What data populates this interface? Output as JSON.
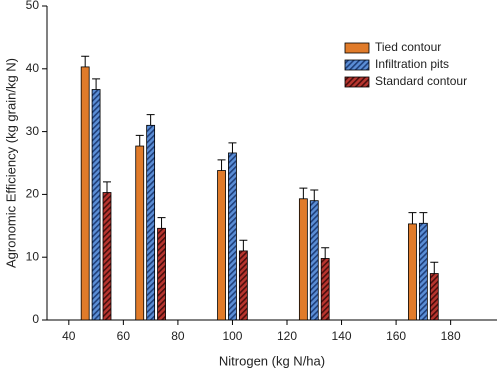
{
  "chart_data": {
    "type": "bar",
    "xlabel": "Nitrogen (kg N/ha)",
    "ylabel": "Agronomic Efficiency (kg grain/kg N)",
    "xlim": [
      32,
      197
    ],
    "xticks": [
      40,
      60,
      80,
      100,
      120,
      140,
      160,
      180
    ],
    "ylim": [
      0,
      50
    ],
    "yticks": [
      0,
      10,
      20,
      30,
      40,
      50
    ],
    "legend": "upper right",
    "series": [
      {
        "name": "Tied contour",
        "color": "#e07b2a",
        "hatch": false,
        "x": [
          46,
          66,
          96,
          126,
          166
        ],
        "values": [
          40.3,
          27.7,
          23.8,
          19.3,
          15.3
        ],
        "errors": [
          1.7,
          1.7,
          1.7,
          1.7,
          1.8
        ]
      },
      {
        "name": "Infiltration pits",
        "color": "#5b8ed6",
        "hatch": true,
        "hatch_color": "#1f3f7a",
        "x": [
          50,
          70,
          100,
          130,
          170
        ],
        "values": [
          36.7,
          31.0,
          26.6,
          19.0,
          15.4
        ],
        "errors": [
          1.7,
          1.7,
          1.6,
          1.7,
          1.7
        ]
      },
      {
        "name": "Standard contour",
        "color": "#b8352f",
        "hatch": true,
        "hatch_color": "#4a0f0d",
        "x": [
          54,
          74,
          104,
          134,
          174
        ],
        "values": [
          20.3,
          14.6,
          11.0,
          9.8,
          7.4
        ],
        "errors": [
          1.7,
          1.7,
          1.7,
          1.7,
          1.8
        ]
      }
    ]
  }
}
